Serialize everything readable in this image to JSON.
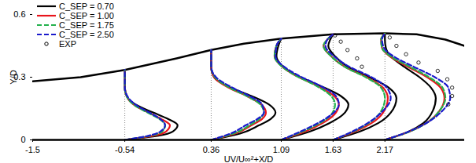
{
  "chart_data": {
    "type": "line",
    "x_label": "UV/U∞²+X/D",
    "y_label": "Y/D",
    "xlim": [
      -1.5,
      3.0
    ],
    "xticks": [
      -1.5,
      -0.54,
      0.36,
      1.09,
      1.63,
      2.17
    ],
    "ylim": [
      0,
      0.6
    ],
    "yticks": [
      0,
      0.3,
      0.6
    ],
    "legend": "top-left",
    "stations": [
      -0.54,
      0.36,
      1.09,
      1.63,
      2.17
    ],
    "profile_y": [
      [
        0,
        0.02,
        0.04,
        0.07,
        0.1,
        0.13,
        0.16,
        0.2,
        0.25,
        0.335
      ],
      [
        0,
        0.03,
        0.07,
        0.1,
        0.13,
        0.17,
        0.21,
        0.25,
        0.3,
        0.35,
        0.43
      ],
      [
        0,
        0.04,
        0.08,
        0.12,
        0.17,
        0.21,
        0.26,
        0.31,
        0.35,
        0.4,
        0.45,
        0.485
      ],
      [
        0,
        0.04,
        0.08,
        0.13,
        0.2,
        0.25,
        0.3,
        0.35,
        0.4,
        0.45,
        0.48,
        0.505
      ],
      [
        0,
        0.04,
        0.08,
        0.14,
        0.2,
        0.25,
        0.3,
        0.35,
        0.4,
        0.44,
        0.48,
        0.51
      ]
    ],
    "series": [
      {
        "name": "C_SEP = 0.70",
        "color": "#000000",
        "line_style": "solid",
        "profiles": [
          [
            0,
            0.35,
            0.5,
            0.55,
            0.45,
            0.3,
            0.15,
            0.03,
            0,
            0
          ],
          [
            0,
            0.3,
            0.5,
            0.62,
            0.67,
            0.6,
            0.42,
            0.2,
            0.03,
            0,
            0
          ],
          [
            0,
            0.3,
            0.5,
            0.64,
            0.7,
            0.62,
            0.4,
            0.15,
            0.02,
            -0.05,
            -0.03,
            0
          ],
          [
            0,
            0.28,
            0.47,
            0.6,
            0.66,
            0.58,
            0.38,
            0.15,
            0.02,
            -0.05,
            -0.03,
            0
          ],
          [
            0,
            0.25,
            0.4,
            0.5,
            0.53,
            0.48,
            0.36,
            0.2,
            0.06,
            0.01,
            0,
            0
          ]
        ]
      },
      {
        "name": "C_SEP = 1.00",
        "color": "#e8141c",
        "line_style": "solid",
        "profiles": [
          [
            0,
            0.3,
            0.43,
            0.47,
            0.38,
            0.25,
            0.12,
            0.03,
            0,
            0
          ],
          [
            0,
            0.25,
            0.42,
            0.53,
            0.57,
            0.52,
            0.37,
            0.18,
            0.03,
            0,
            0
          ],
          [
            0,
            0.25,
            0.43,
            0.55,
            0.6,
            0.55,
            0.37,
            0.14,
            0.01,
            -0.07,
            -0.05,
            0
          ],
          [
            0,
            0.23,
            0.4,
            0.52,
            0.57,
            0.52,
            0.35,
            0.12,
            -0.02,
            -0.1,
            -0.06,
            0
          ],
          [
            0,
            0.26,
            0.43,
            0.57,
            0.62,
            0.58,
            0.44,
            0.24,
            0.05,
            -0.03,
            -0.04,
            0
          ]
        ]
      },
      {
        "name": "C_SEP = 1.75",
        "color": "#22b14c",
        "line_style": "dashed",
        "profiles": [
          [
            0,
            0.27,
            0.39,
            0.42,
            0.36,
            0.24,
            0.12,
            0.03,
            0,
            0
          ],
          [
            0,
            0.23,
            0.4,
            0.5,
            0.55,
            0.51,
            0.37,
            0.19,
            0.04,
            0,
            0
          ],
          [
            0,
            0.22,
            0.4,
            0.52,
            0.56,
            0.52,
            0.36,
            0.14,
            0.01,
            -0.07,
            -0.05,
            0
          ],
          [
            0,
            0.21,
            0.37,
            0.49,
            0.54,
            0.5,
            0.34,
            0.12,
            -0.02,
            -0.1,
            -0.06,
            0
          ],
          [
            0,
            0.26,
            0.43,
            0.57,
            0.63,
            0.6,
            0.46,
            0.26,
            0.06,
            -0.03,
            -0.04,
            0
          ]
        ]
      },
      {
        "name": "C_SEP = 2.50",
        "color": "#1a1acc",
        "line_style": "dashed",
        "profiles": [
          [
            0,
            0.25,
            0.37,
            0.42,
            0.37,
            0.26,
            0.14,
            0.04,
            0,
            0
          ],
          [
            0,
            0.2,
            0.36,
            0.48,
            0.55,
            0.53,
            0.4,
            0.22,
            0.05,
            0,
            0
          ],
          [
            0,
            0.2,
            0.38,
            0.52,
            0.6,
            0.57,
            0.4,
            0.17,
            0.03,
            -0.06,
            -0.05,
            0
          ],
          [
            0,
            0.2,
            0.36,
            0.5,
            0.6,
            0.56,
            0.4,
            0.17,
            0.01,
            -0.08,
            -0.06,
            0
          ],
          [
            0,
            0.25,
            0.43,
            0.6,
            0.68,
            0.66,
            0.52,
            0.3,
            0.09,
            -0.01,
            -0.03,
            0
          ]
        ]
      }
    ],
    "experiment": {
      "name": "EXP",
      "color": "#000000",
      "marker": "circle",
      "points": [
        {
          "station": 1.63,
          "uv": [
            0.02,
            0.08,
            0.15,
            0.25,
            0.3
          ],
          "y": [
            0.5,
            0.47,
            0.43,
            0.39,
            0.35
          ]
        },
        {
          "station": 2.17,
          "uv": [
            0.05,
            0.12,
            0.22,
            0.35,
            0.55,
            0.65,
            0.7,
            0.7,
            0.66
          ],
          "y": [
            0.49,
            0.45,
            0.41,
            0.37,
            0.33,
            0.29,
            0.25,
            0.21,
            0.17
          ]
        }
      ]
    },
    "upper_wall": {
      "x": [
        -1.5,
        -1.0,
        -0.54,
        0,
        0.36,
        0.7,
        1.09,
        1.63,
        2.17,
        2.5,
        2.8,
        3.0
      ],
      "y": [
        0.28,
        0.3,
        0.335,
        0.39,
        0.43,
        0.46,
        0.485,
        0.505,
        0.51,
        0.505,
        0.48,
        0.45
      ]
    }
  }
}
